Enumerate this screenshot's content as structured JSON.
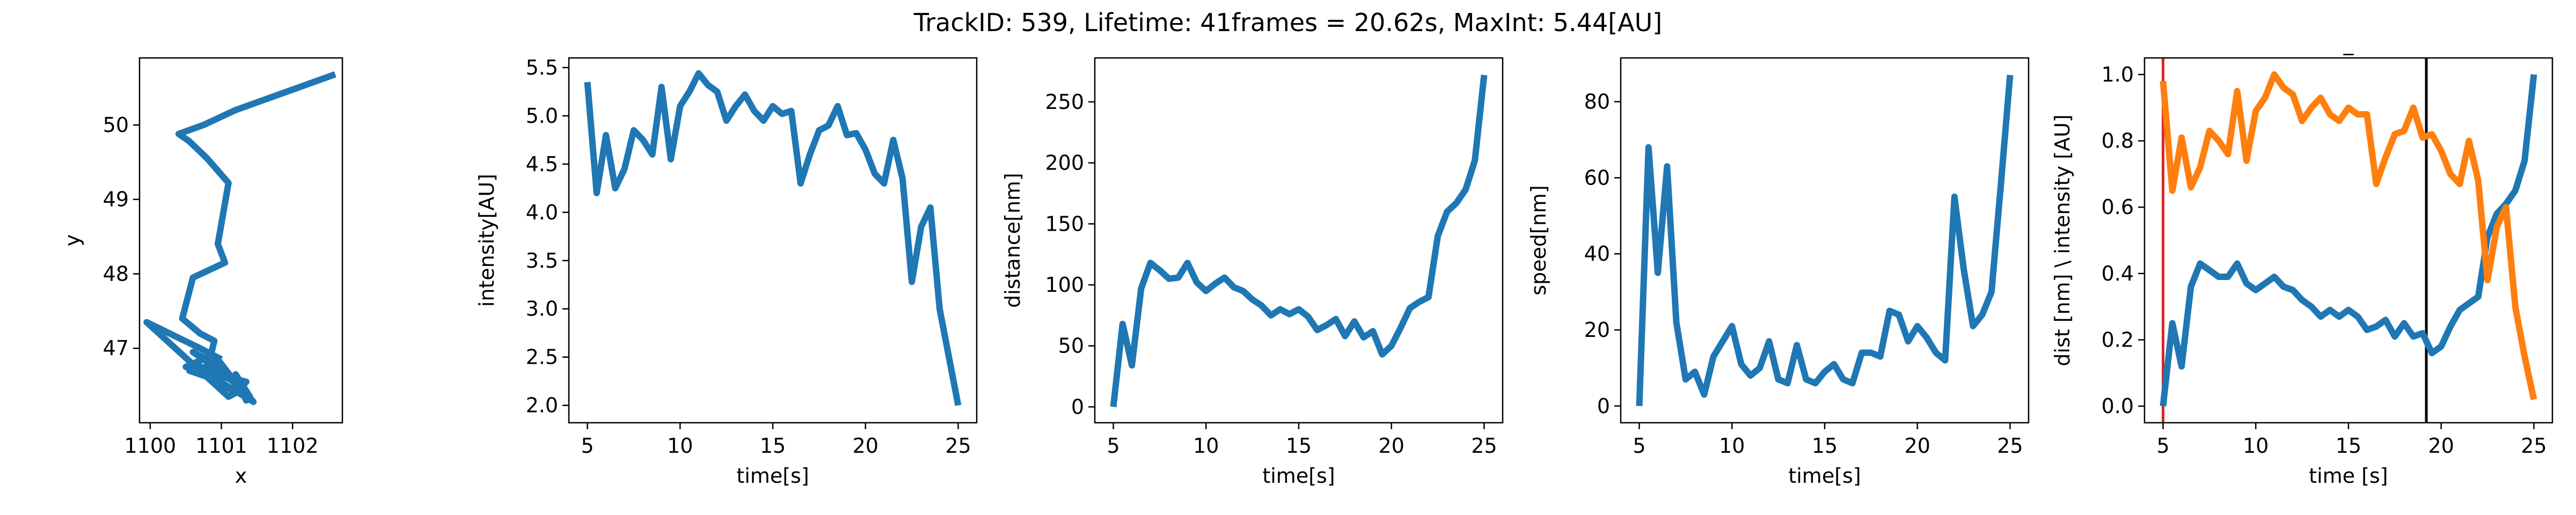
{
  "figure": {
    "suptitle": "TrackID: 539, Lifetime: 41frames = 20.62s, MaxInt: 5.44[AU]"
  },
  "colors": {
    "blue": "#1f77b4",
    "orange": "#ff7f0e",
    "red": "#d62728",
    "black": "#000000"
  },
  "chart_data": [
    {
      "type": "line",
      "title": "",
      "xlabel": "x",
      "ylabel": "y",
      "xlim": [
        1099.85,
        1102.7
      ],
      "ylim": [
        46.0,
        50.9
      ],
      "xticks": [
        1100,
        1101,
        1102
      ],
      "yticks": [
        47,
        48,
        49,
        50
      ],
      "xtick_labels": [
        "1100",
        "1101",
        "1102"
      ],
      "ytick_labels": [
        "47",
        "48",
        "49",
        "50"
      ],
      "series": [
        {
          "color": "#1f77b4",
          "x": [
            1102.6,
            1101.2,
            1100.75,
            1100.4,
            1100.55,
            1100.8,
            1101.1,
            1100.95,
            1101.05,
            1100.6,
            1100.45,
            1100.7,
            1100.9,
            1100.85,
            1100.5,
            1100.85,
            1101.0,
            1100.55,
            1100.6,
            1101.2,
            1100.6,
            1101.0,
            1101.3,
            1101.2,
            1101.4,
            1101.25,
            1101.35,
            1101.25,
            1101.45,
            1100.9,
            1101.2,
            1101.35,
            1100.7,
            1100.95,
            1101.15,
            1100.9,
            1101.3,
            1101.1,
            1099.95,
            1100.7,
            1101.0
          ],
          "y": [
            50.68,
            50.2,
            50.0,
            49.88,
            49.78,
            49.55,
            49.22,
            48.4,
            48.15,
            47.95,
            47.4,
            47.2,
            47.1,
            46.9,
            46.75,
            46.72,
            46.55,
            46.7,
            46.8,
            46.55,
            46.95,
            46.75,
            46.45,
            46.65,
            46.35,
            46.55,
            46.3,
            46.5,
            46.28,
            46.6,
            46.4,
            46.55,
            46.7,
            46.85,
            46.6,
            46.75,
            46.45,
            46.35,
            47.35,
            47.0,
            46.85
          ]
        }
      ]
    },
    {
      "type": "line",
      "title": "",
      "xlabel": "time[s]",
      "ylabel": "intensity[AU]",
      "xlim": [
        4.0,
        26.0
      ],
      "ylim": [
        1.82,
        5.6
      ],
      "xticks": [
        5,
        10,
        15,
        20,
        25
      ],
      "yticks": [
        2.0,
        2.5,
        3.0,
        3.5,
        4.0,
        4.5,
        5.0,
        5.5
      ],
      "xtick_labels": [
        "5",
        "10",
        "15",
        "20",
        "25"
      ],
      "ytick_labels": [
        "2.0",
        "2.5",
        "3.0",
        "3.5",
        "4.0",
        "4.5",
        "5.0",
        "5.5"
      ],
      "series": [
        {
          "color": "#1f77b4",
          "x": [
            5.0,
            5.5,
            6.0,
            6.5,
            7.0,
            7.5,
            8.0,
            8.5,
            9.0,
            9.5,
            10.0,
            10.5,
            11.0,
            11.5,
            12.0,
            12.5,
            13.0,
            13.5,
            14.0,
            14.5,
            15.0,
            15.5,
            16.0,
            16.5,
            17.0,
            17.5,
            18.0,
            18.5,
            19.0,
            19.5,
            20.0,
            20.5,
            21.0,
            21.5,
            22.0,
            22.5,
            23.0,
            23.5,
            24.0,
            24.5,
            25.0
          ],
          "y": [
            5.35,
            4.2,
            4.8,
            4.25,
            4.45,
            4.85,
            4.75,
            4.6,
            5.3,
            4.55,
            5.1,
            5.25,
            5.44,
            5.32,
            5.25,
            4.95,
            5.1,
            5.22,
            5.05,
            4.95,
            5.1,
            5.02,
            5.05,
            4.3,
            4.6,
            4.85,
            4.9,
            5.1,
            4.8,
            4.82,
            4.65,
            4.4,
            4.3,
            4.75,
            4.35,
            3.28,
            3.85,
            4.05,
            3.0,
            2.5,
            2.0
          ]
        }
      ]
    },
    {
      "type": "line",
      "title": "",
      "xlabel": "time[s]",
      "ylabel": "distance[nm]",
      "xlim": [
        4.0,
        26.0
      ],
      "ylim": [
        -13,
        286
      ],
      "xticks": [
        5,
        10,
        15,
        20,
        25
      ],
      "yticks": [
        0,
        50,
        100,
        150,
        200,
        250
      ],
      "xtick_labels": [
        "5",
        "10",
        "15",
        "20",
        "25"
      ],
      "ytick_labels": [
        "0",
        "50",
        "100",
        "150",
        "200",
        "250"
      ],
      "series": [
        {
          "color": "#1f77b4",
          "x": [
            5.0,
            5.5,
            6.0,
            6.5,
            7.0,
            7.5,
            8.0,
            8.5,
            9.0,
            9.5,
            10.0,
            10.5,
            11.0,
            11.5,
            12.0,
            12.5,
            13.0,
            13.5,
            14.0,
            14.5,
            15.0,
            15.5,
            16.0,
            16.5,
            17.0,
            17.5,
            18.0,
            18.5,
            19.0,
            19.5,
            20.0,
            20.5,
            21.0,
            21.5,
            22.0,
            22.5,
            23.0,
            23.5,
            24.0,
            24.5,
            25.0
          ],
          "y": [
            0,
            68,
            34,
            97,
            118,
            112,
            105,
            106,
            118,
            102,
            95,
            101,
            106,
            98,
            95,
            88,
            83,
            75,
            80,
            76,
            80,
            74,
            63,
            67,
            72,
            58,
            70,
            57,
            62,
            43,
            50,
            65,
            81,
            86,
            90,
            140,
            160,
            167,
            178,
            202,
            272
          ]
        }
      ]
    },
    {
      "type": "line",
      "title": "",
      "xlabel": "time[s]",
      "ylabel": "speed[nm]",
      "xlim": [
        4.0,
        26.0
      ],
      "ylim": [
        -4.4,
        91.5
      ],
      "xticks": [
        5,
        10,
        15,
        20,
        25
      ],
      "yticks": [
        0,
        20,
        40,
        60,
        80
      ],
      "xtick_labels": [
        "5",
        "10",
        "15",
        "20",
        "25"
      ],
      "ytick_labels": [
        "0",
        "20",
        "40",
        "60",
        "80"
      ],
      "series": [
        {
          "color": "#1f77b4",
          "x": [
            5.0,
            5.5,
            6.0,
            6.5,
            7.0,
            7.5,
            8.0,
            8.5,
            9.0,
            9.5,
            10.0,
            10.5,
            11.0,
            11.5,
            12.0,
            12.5,
            13.0,
            13.5,
            14.0,
            14.5,
            15.0,
            15.5,
            16.0,
            16.5,
            17.0,
            17.5,
            18.0,
            18.5,
            19.0,
            19.5,
            20.0,
            20.5,
            21.0,
            21.5,
            22.0,
            22.5,
            23.0,
            23.5,
            24.0,
            24.5,
            25.0
          ],
          "y": [
            0,
            68,
            35,
            63,
            22,
            7,
            9,
            3,
            13,
            17,
            21,
            11,
            8,
            10,
            17,
            7,
            6,
            16,
            7,
            6,
            9,
            11,
            7,
            6,
            14,
            14,
            13,
            25,
            24,
            17,
            21,
            18,
            14,
            12,
            55,
            36,
            21,
            24,
            30,
            58,
            87
          ]
        }
      ]
    },
    {
      "type": "line",
      "title": "_",
      "xlabel": "time [s]",
      "ylabel": "dist [nm] \\ intensity [AU]",
      "xlim": [
        4.0,
        26.0
      ],
      "ylim": [
        -0.05,
        1.05
      ],
      "xticks": [
        5,
        10,
        15,
        20,
        25
      ],
      "yticks": [
        0.0,
        0.2,
        0.4,
        0.6,
        0.8,
        1.0
      ],
      "xtick_labels": [
        "5",
        "10",
        "15",
        "20",
        "25"
      ],
      "ytick_labels": [
        "0.0",
        "0.2",
        "0.4",
        "0.6",
        "0.8",
        "1.0"
      ],
      "vlines": [
        {
          "x": 5.0,
          "color": "#d62728"
        },
        {
          "x": 19.2,
          "color": "#000000"
        }
      ],
      "series": [
        {
          "color": "#1f77b4",
          "x": [
            5.0,
            5.5,
            6.0,
            6.5,
            7.0,
            7.5,
            8.0,
            8.5,
            9.0,
            9.5,
            10.0,
            10.5,
            11.0,
            11.5,
            12.0,
            12.5,
            13.0,
            13.5,
            14.0,
            14.5,
            15.0,
            15.5,
            16.0,
            16.5,
            17.0,
            17.5,
            18.0,
            18.5,
            19.0,
            19.5,
            20.0,
            20.5,
            21.0,
            21.5,
            22.0,
            22.5,
            23.0,
            23.5,
            24.0,
            24.5,
            25.0
          ],
          "y": [
            0.0,
            0.25,
            0.12,
            0.36,
            0.43,
            0.41,
            0.39,
            0.39,
            0.43,
            0.37,
            0.35,
            0.37,
            0.39,
            0.36,
            0.35,
            0.32,
            0.3,
            0.27,
            0.29,
            0.27,
            0.29,
            0.27,
            0.23,
            0.24,
            0.26,
            0.21,
            0.25,
            0.21,
            0.22,
            0.16,
            0.18,
            0.24,
            0.29,
            0.31,
            0.33,
            0.51,
            0.58,
            0.61,
            0.65,
            0.74,
            1.0
          ]
        },
        {
          "color": "#ff7f0e",
          "x": [
            5.0,
            5.5,
            6.0,
            6.5,
            7.0,
            7.5,
            8.0,
            8.5,
            9.0,
            9.5,
            10.0,
            10.5,
            11.0,
            11.5,
            12.0,
            12.5,
            13.0,
            13.5,
            14.0,
            14.5,
            15.0,
            15.5,
            16.0,
            16.5,
            17.0,
            17.5,
            18.0,
            18.5,
            19.0,
            19.5,
            20.0,
            20.5,
            21.0,
            21.5,
            22.0,
            22.5,
            23.0,
            23.5,
            24.0,
            24.5,
            25.0
          ],
          "y": [
            0.98,
            0.65,
            0.81,
            0.66,
            0.72,
            0.83,
            0.8,
            0.76,
            0.95,
            0.74,
            0.89,
            0.93,
            1.0,
            0.96,
            0.94,
            0.86,
            0.9,
            0.93,
            0.88,
            0.86,
            0.9,
            0.88,
            0.88,
            0.67,
            0.75,
            0.82,
            0.83,
            0.9,
            0.81,
            0.82,
            0.77,
            0.7,
            0.67,
            0.8,
            0.68,
            0.38,
            0.54,
            0.6,
            0.3,
            0.15,
            0.02
          ]
        }
      ]
    }
  ]
}
